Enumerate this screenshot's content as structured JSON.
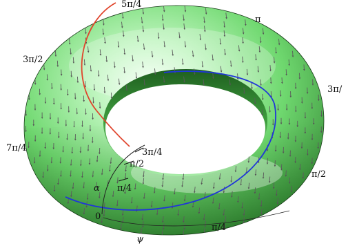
{
  "diagram": {
    "outer_labels": [
      {
        "id": "five-pi-4",
        "text": "5π/4"
      },
      {
        "id": "pi",
        "text": "π"
      },
      {
        "id": "three-pi-2-left",
        "text": "3π/2"
      },
      {
        "id": "three-pi-2-right",
        "text": "3π/"
      },
      {
        "id": "seven-pi-4",
        "text": "7π/4"
      },
      {
        "id": "pi-2-right",
        "text": "π/2"
      },
      {
        "id": "pi-4-bottom",
        "text": "π/4"
      }
    ],
    "inner_scale": {
      "three_pi_4": "3π/4",
      "pi_2": "π/2",
      "pi_4": "π/4",
      "zero": "0"
    },
    "angle_symbols": {
      "alpha": "α",
      "psi": "ψ"
    },
    "colors": {
      "torus_light": "#eaffea",
      "torus_mid": "#7fe27f",
      "torus_dark": "#2f8f2f",
      "red_curve": "#e0442c",
      "blue_curve": "#2036d8",
      "arrows": "#6a6a6a"
    }
  }
}
